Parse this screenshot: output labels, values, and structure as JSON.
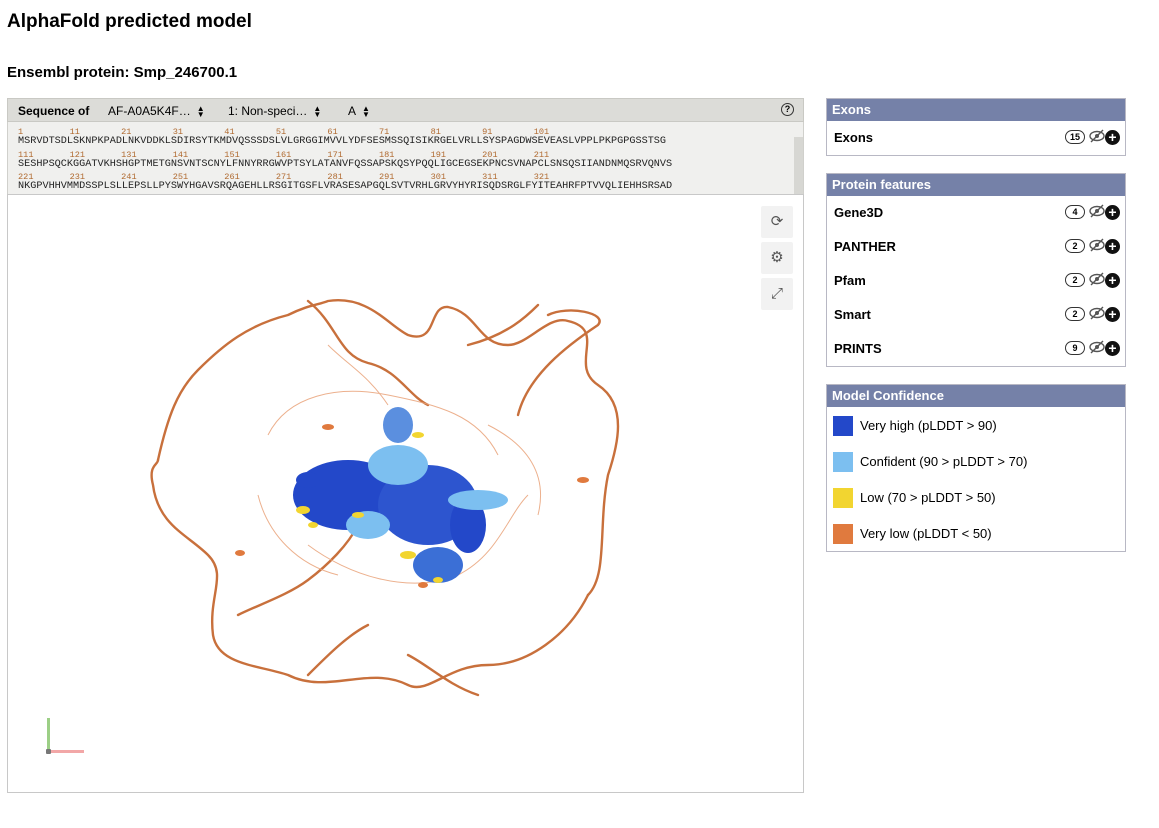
{
  "page": {
    "title": "AlphaFold predicted model",
    "subtitle": "Ensembl protein: Smp_246700.1"
  },
  "sequence": {
    "label": "Sequence of",
    "model_select": "AF-A0A5K4F…",
    "entity_select": "1: Non-speci…",
    "chain_select": "A",
    "help": "?",
    "rows": [
      {
        "numbers": "1         11        21        31        41        51        61        71        81        91        101",
        "residues": "MSRVDTSDLSKNPKPADLNKVDDKLSDIRSYTKMDVQSSSDSLVLGRGGIMVVLYDFSESMSSQISIKRGELVRLLSYSPAGDWSEVEASLVPPLPKPGPGSSTSG"
      },
      {
        "numbers": "111       121       131       141       151       161       171       181       191       201       211",
        "residues": "SESHPSQCKGGATVKHSHGPTMETGNSVNTSCNYLFNNYRRGWVPTSYLATANVFQSSAPSKQSYPQQLIGCEGSEKPNCSVNAPCLSNSQSIIANDNMQSRVQNVS"
      },
      {
        "numbers": "221       231       241       251       261       271       281       291       301       311       321",
        "residues": "NKGPVHHVMMDSSPLSLLEPSLLPYSWYHGAVSRQAGEHLLRSGITGSFLVRASESAPGQLSVTVRHLGRVYHYRISQDSRGLFYITEAHRFPTVVQLIEHHSRSAD"
      }
    ]
  },
  "viewer": {
    "buttons": [
      "reset-icon",
      "settings-icon",
      "expand-icon"
    ]
  },
  "exons": {
    "title": "Exons",
    "items": [
      {
        "name": "Exons",
        "count": "15"
      }
    ]
  },
  "features": {
    "title": "Protein features",
    "items": [
      {
        "name": "Gene3D",
        "count": "4"
      },
      {
        "name": "PANTHER",
        "count": "2"
      },
      {
        "name": "Pfam",
        "count": "2"
      },
      {
        "name": "Smart",
        "count": "2"
      },
      {
        "name": "PRINTS",
        "count": "9"
      }
    ]
  },
  "confidence": {
    "title": "Model Confidence",
    "items": [
      {
        "label": "Very high (pLDDT > 90)",
        "color": "#2348c9"
      },
      {
        "label": "Confident (90 > pLDDT > 70)",
        "color": "#7cbff0"
      },
      {
        "label": "Low (70 > pLDDT > 50)",
        "color": "#f2d530"
      },
      {
        "label": "Very low (pLDDT < 50)",
        "color": "#e07a3e"
      }
    ]
  }
}
